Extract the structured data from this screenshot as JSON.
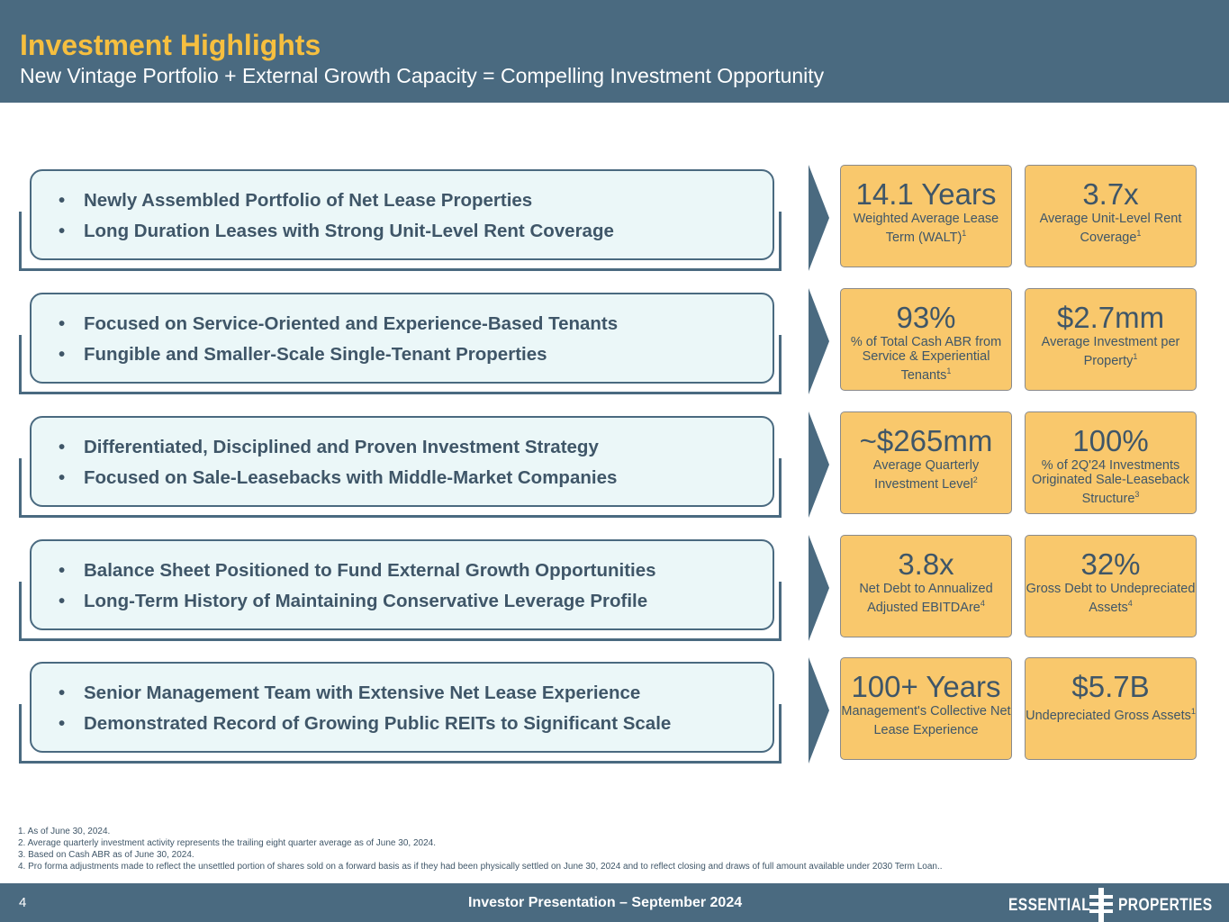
{
  "header": {
    "title": "Investment Highlights",
    "subtitle": "New Vintage Portfolio + External Growth Capacity = Compelling Investment Opportunity"
  },
  "rows": [
    {
      "bullets": [
        "Newly Assembled Portfolio of Net Lease Properties",
        "Long Duration Leases with Strong Unit-Level Rent Coverage"
      ],
      "cards": [
        {
          "value": "14.1 Years",
          "desc": "Weighted Average Lease Term (WALT)",
          "sup": "1"
        },
        {
          "value": "3.7x",
          "desc": "Average Unit-Level Rent Coverage",
          "sup": "1"
        }
      ]
    },
    {
      "bullets": [
        "Focused on Service-Oriented and Experience-Based Tenants",
        "Fungible and Smaller-Scale Single-Tenant Properties"
      ],
      "cards": [
        {
          "value": "93%",
          "desc": "% of Total Cash ABR from Service & Experiential Tenants",
          "sup": "1"
        },
        {
          "value": "$2.7mm",
          "desc": "Average Investment per Property",
          "sup": "1"
        }
      ]
    },
    {
      "bullets": [
        "Differentiated, Disciplined and Proven Investment Strategy",
        "Focused on Sale-Leasebacks with Middle-Market Companies"
      ],
      "cards": [
        {
          "value": "~$265mm",
          "desc": "Average Quarterly Investment Level",
          "sup": "2"
        },
        {
          "value": "100%",
          "desc": "% of 2Q'24 Investments Originated Sale-Leaseback Structure",
          "sup": "3"
        }
      ]
    },
    {
      "bullets": [
        "Balance Sheet Positioned to Fund External Growth Opportunities",
        "Long-Term History of Maintaining Conservative Leverage Profile"
      ],
      "cards": [
        {
          "value": "3.8x",
          "desc": "Net Debt to Annualized Adjusted EBITDAre",
          "sup": "4"
        },
        {
          "value": "32%",
          "desc": "Gross Debt to Undepreciated Assets",
          "sup": "4"
        }
      ]
    },
    {
      "bullets": [
        "Senior Management Team with Extensive Net Lease Experience",
        "Demonstrated Record of Growing Public REITs to Significant Scale"
      ],
      "cards": [
        {
          "value": "100+ Years",
          "desc": "Management's Collective Net Lease Experience",
          "sup": ""
        },
        {
          "value": "$5.7B",
          "desc": "Undepreciated Gross Assets",
          "sup": "1"
        }
      ]
    }
  ],
  "footnotes": [
    "1.   As of June 30, 2024.",
    "2.   Average quarterly investment activity represents the trailing eight quarter average as of June 30, 2024.",
    "3.   Based on Cash ABR as of June 30, 2024.",
    "4.   Pro forma adjustments made to reflect the unsettled portion of shares sold on a forward basis as if they had been physically settled on June 30, 2024 and to reflect closing and draws of full amount available under 2030 Term Loan.."
  ],
  "footer": {
    "page_number": "4",
    "presentation_title": "Investor Presentation – September 2024",
    "logo_word1": "ESSENTIAL",
    "logo_word2": "PROPERTIES"
  },
  "colors": {
    "header_bg": "#4a6a80",
    "title": "#f6bf3f",
    "card_bg": "#f9c86c",
    "box_bg": "#ebf7f8",
    "text_dark": "#3f5668"
  }
}
